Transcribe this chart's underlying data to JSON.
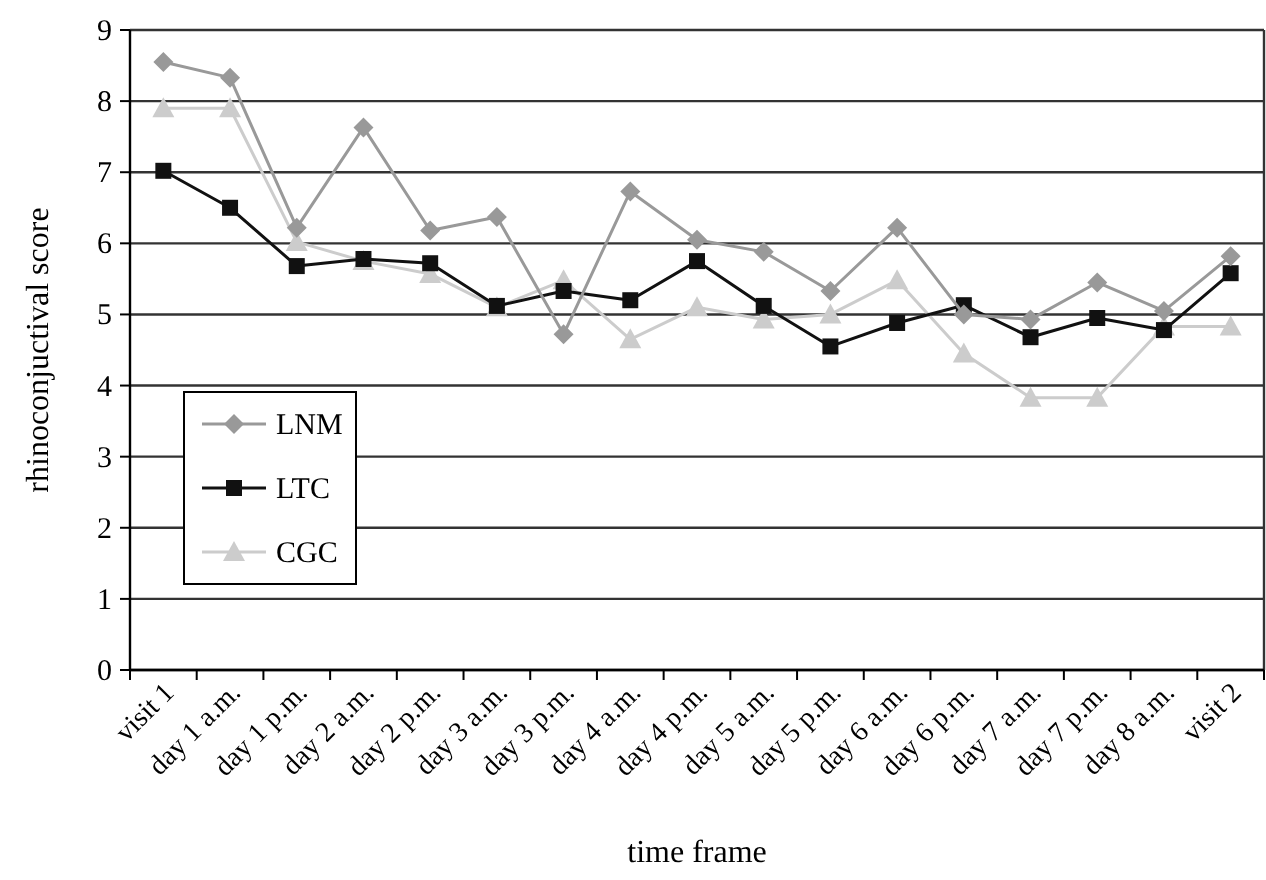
{
  "chart_data": {
    "type": "line",
    "xlabel": "time frame",
    "ylabel": "rhinoconjuctival score",
    "categories": [
      "visit 1",
      "day 1 a.m.",
      "day 1 p.m.",
      "day 2 a.m.",
      "day 2 p.m.",
      "day 3 a.m.",
      "day 3 p.m.",
      "day 4 a.m.",
      "day 4 p.m.",
      "day 5 a.m.",
      "day 5 p.m.",
      "day 6 a.m.",
      "day 6 p.m.",
      "day 7 a.m.",
      "day 7 p.m.",
      "day 8 a.m.",
      "visit 2"
    ],
    "series": [
      {
        "name": "LNM",
        "color": "#999999",
        "marker": "diamond",
        "values": [
          8.55,
          8.33,
          6.22,
          7.63,
          6.18,
          6.37,
          4.72,
          6.73,
          6.05,
          5.88,
          5.33,
          6.22,
          5.0,
          4.93,
          5.45,
          5.05,
          5.82
        ]
      },
      {
        "name": "LTC",
        "color": "#111111",
        "marker": "square",
        "values": [
          7.02,
          6.5,
          5.68,
          5.78,
          5.72,
          5.12,
          5.33,
          5.2,
          5.75,
          5.12,
          4.55,
          4.88,
          5.13,
          4.68,
          4.95,
          4.78,
          5.58
        ]
      },
      {
        "name": "CGC",
        "color": "#cccccc",
        "marker": "triangle",
        "values": [
          7.9,
          7.9,
          6.02,
          5.75,
          5.57,
          5.1,
          5.48,
          4.65,
          5.1,
          4.93,
          5.0,
          5.48,
          4.45,
          3.83,
          3.83,
          4.83,
          4.83
        ]
      }
    ],
    "ylim": [
      0,
      9
    ],
    "yticks": [
      0,
      1,
      2,
      3,
      4,
      5,
      6,
      7,
      8,
      9
    ],
    "grid": "y",
    "legend": "bottom left"
  }
}
